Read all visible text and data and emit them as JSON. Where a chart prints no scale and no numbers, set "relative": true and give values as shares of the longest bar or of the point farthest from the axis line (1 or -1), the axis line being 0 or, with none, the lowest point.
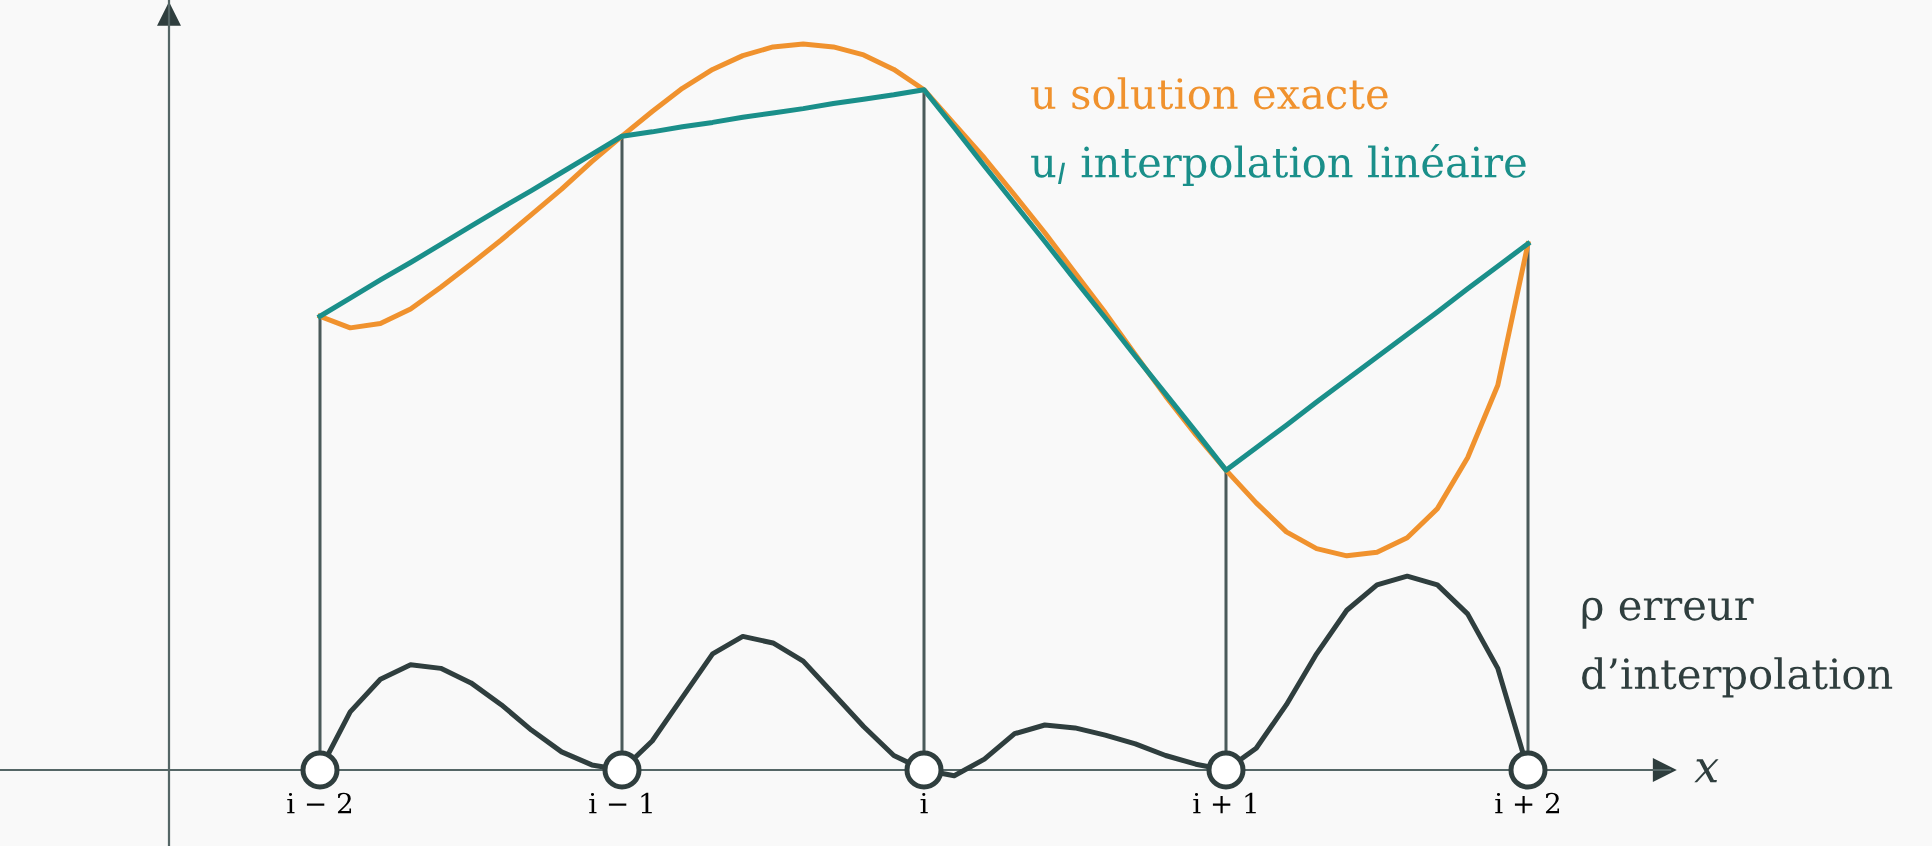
{
  "chart_data": {
    "type": "line",
    "relative": true,
    "xlabel": "x",
    "categories": [
      "i − 2",
      null,
      null,
      null,
      null,
      null,
      null,
      null,
      null,
      null,
      "i − 1",
      null,
      null,
      null,
      null,
      null,
      null,
      null,
      null,
      null,
      "i",
      null,
      null,
      null,
      null,
      null,
      null,
      null,
      null,
      null,
      "i + 1",
      null,
      null,
      null,
      null,
      null,
      null,
      null,
      null,
      null,
      "i + 2"
    ],
    "grid": false,
    "legend": false,
    "marker": "none",
    "series": [
      {
        "name": "u solution exacte",
        "color": "#f0922e",
        "values": [
          0.625,
          0.609,
          0.615,
          0.635,
          0.665,
          0.697,
          0.73,
          0.765,
          0.8,
          0.838,
          0.873,
          0.907,
          0.939,
          0.965,
          0.984,
          0.996,
          1.0,
          0.996,
          0.985,
          0.965,
          0.937,
          0.89,
          0.843,
          0.792,
          0.74,
          0.685,
          0.63,
          0.572,
          0.515,
          0.462,
          0.413,
          0.368,
          0.328,
          0.305,
          0.295,
          0.3,
          0.32,
          0.36,
          0.43,
          0.53,
          0.725
        ]
      },
      {
        "name": "u$_{I}$ interpolation linéaire",
        "color": "#1a8f8a",
        "values": [
          0.625,
          0.65,
          0.675,
          0.699,
          0.724,
          0.749,
          0.774,
          0.798,
          0.823,
          0.848,
          0.873,
          0.879,
          0.886,
          0.892,
          0.899,
          0.905,
          0.911,
          0.918,
          0.924,
          0.93,
          0.937,
          0.885,
          0.832,
          0.78,
          0.728,
          0.675,
          0.623,
          0.57,
          0.518,
          0.466,
          0.413,
          0.444,
          0.475,
          0.507,
          0.538,
          0.569,
          0.6,
          0.631,
          0.663,
          0.694,
          0.725
        ]
      },
      {
        "name": "ρ erreur\nd’interpolation",
        "color": "#2f3e3e",
        "values": [
          0,
          0.08,
          0.125,
          0.145,
          0.14,
          0.12,
          0.09,
          0.055,
          0.025,
          0.007,
          0,
          0.04,
          0.1,
          0.16,
          0.184,
          0.175,
          0.15,
          0.105,
          0.06,
          0.02,
          0,
          -0.008,
          0.015,
          0.05,
          0.062,
          0.058,
          0.048,
          0.036,
          0.02,
          0.008,
          0,
          0.03,
          0.09,
          0.16,
          0.22,
          0.255,
          0.267,
          0.255,
          0.215,
          0.14,
          0
        ]
      },
      {
        "type": "bar",
        "color": "#4a5a5a",
        "values": [
          0.625,
          null,
          null,
          null,
          null,
          null,
          null,
          null,
          null,
          null,
          0.873,
          null,
          null,
          null,
          null,
          null,
          null,
          null,
          null,
          null,
          0.937,
          null,
          null,
          null,
          null,
          null,
          null,
          null,
          null,
          null,
          0.413,
          null,
          null,
          null,
          null,
          null,
          null,
          null,
          null,
          null,
          0.725
        ]
      },
      {
        "type": "scatter",
        "color": "#2f3e3e",
        "marker": "circle",
        "values": [
          0,
          null,
          null,
          null,
          null,
          null,
          null,
          null,
          null,
          null,
          0,
          null,
          null,
          null,
          null,
          null,
          null,
          null,
          null,
          null,
          0,
          null,
          null,
          null,
          null,
          null,
          null,
          null,
          null,
          null,
          0,
          null,
          null,
          null,
          null,
          null,
          null,
          null,
          null,
          null,
          0
        ]
      }
    ]
  }
}
